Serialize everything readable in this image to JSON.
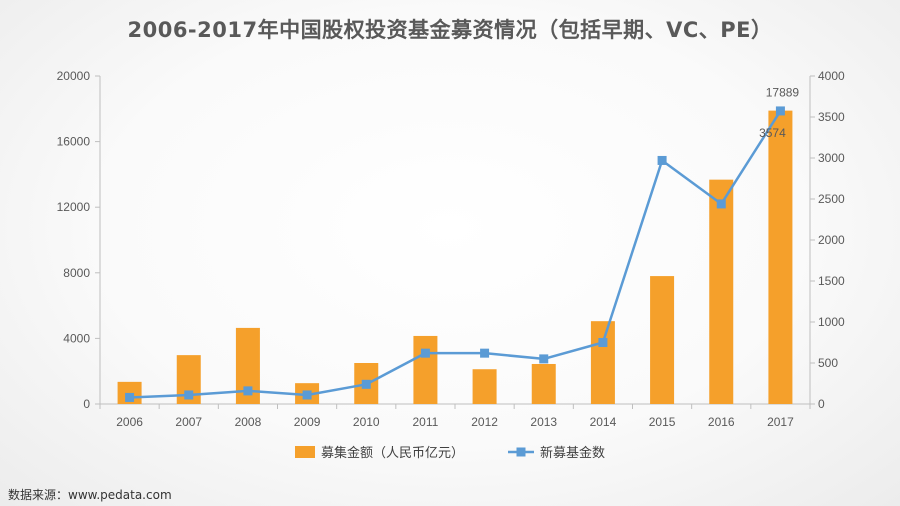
{
  "title": "2006-2017年中国股权投资基金募资情况（包括早期、VC、PE）",
  "source": "数据来源：www.pedata.com",
  "chart_data": {
    "type": "bar",
    "title": "2006-2017年中国股权投资基金募资情况（包括早期、VC、PE）",
    "categories": [
      "2006",
      "2007",
      "2008",
      "2009",
      "2010",
      "2011",
      "2012",
      "2013",
      "2014",
      "2015",
      "2016",
      "2017"
    ],
    "series": [
      {
        "name": "募集金额（人民币亿元）",
        "type": "bar",
        "axis": "left",
        "color": "#F5A02B",
        "values": [
          1350,
          2980,
          4640,
          1270,
          2500,
          4150,
          2120,
          2440,
          5050,
          7800,
          13680,
          17889
        ]
      },
      {
        "name": "新募基金数",
        "type": "line",
        "axis": "right",
        "color": "#5B9BD5",
        "values": [
          80,
          110,
          160,
          110,
          240,
          620,
          620,
          550,
          750,
          2970,
          2440,
          3574
        ]
      }
    ],
    "y_left": {
      "ylim": [
        0,
        20000
      ],
      "ticks": [
        0,
        4000,
        8000,
        12000,
        16000,
        20000
      ]
    },
    "y_right": {
      "ylim": [
        0,
        4000
      ],
      "ticks": [
        0,
        500,
        1000,
        1500,
        2000,
        2500,
        3000,
        3500,
        4000
      ]
    },
    "data_labels": [
      {
        "series": 0,
        "index": 11,
        "text": "17889"
      },
      {
        "series": 1,
        "index": 11,
        "text": "3574"
      }
    ],
    "legend_position": "bottom",
    "grid": false
  }
}
